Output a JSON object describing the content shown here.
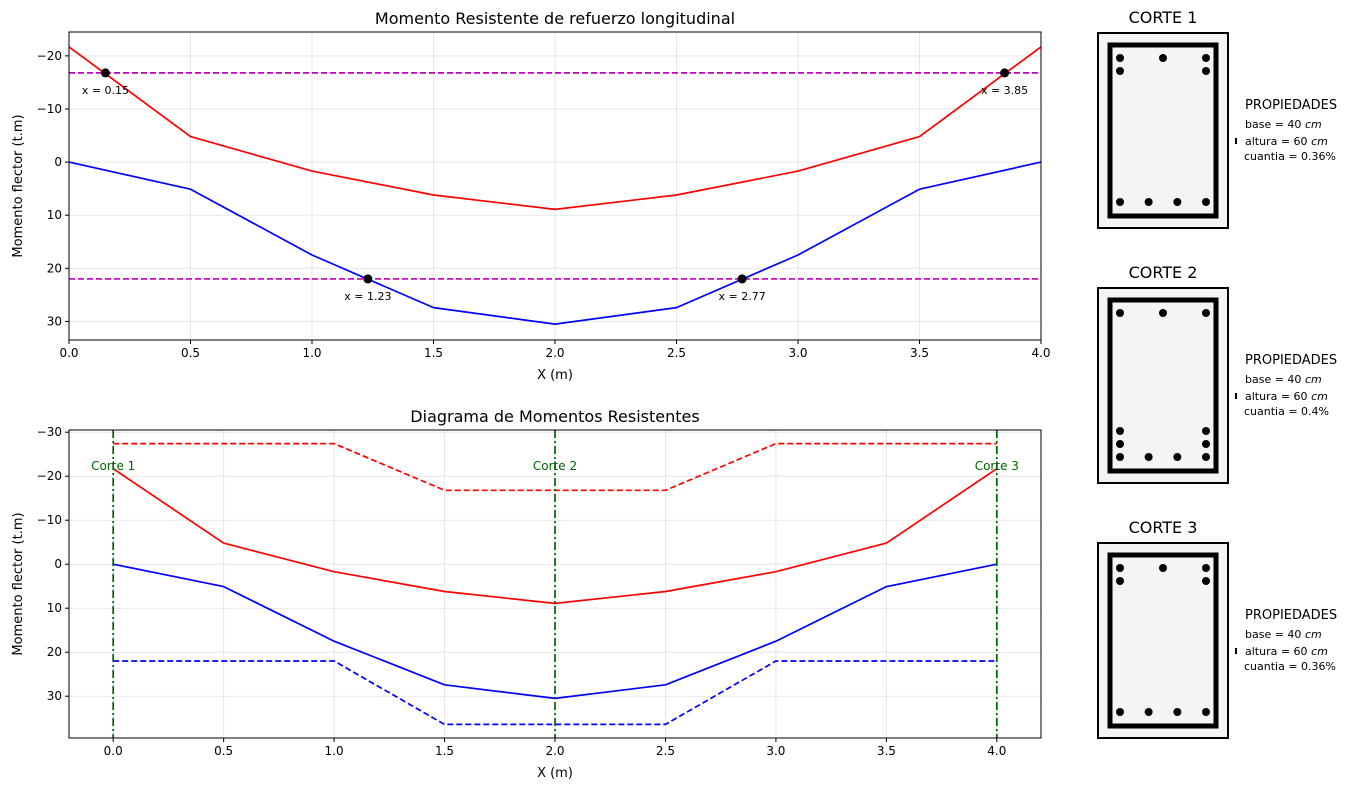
{
  "colors": {
    "negative": "#ff0000",
    "positive": "#0000ff",
    "threshold": "#bf00bf",
    "corte": "#006400",
    "grid": "#b0b0b0",
    "point": "#000000",
    "section_fill": "#f4f4f4"
  },
  "chart_data": [
    {
      "type": "line",
      "title": "Momento Resistente de refuerzo longitudinal",
      "xlabel": "X (m)",
      "ylabel": "Momento flector (t.m)",
      "xlim": [
        0,
        4
      ],
      "ylim": [
        -24.5,
        33.5
      ],
      "y_inverted": true,
      "grid": true,
      "x": [
        0,
        0.5,
        1.0,
        1.5,
        2.0,
        2.5,
        3.0,
        3.5,
        4.0
      ],
      "x_ticks": [
        0,
        0.5,
        1.0,
        1.5,
        2.0,
        2.5,
        3.0,
        3.5,
        4.0
      ],
      "x_tick_labels": [
        "0.0",
        "0.5",
        "1.0",
        "1.5",
        "2.0",
        "2.5",
        "3.0",
        "3.5",
        "4.0"
      ],
      "y_ticks": [
        -20,
        -10,
        0,
        10,
        20,
        30
      ],
      "y_tick_labels": [
        "−20",
        "−10",
        "0",
        "10",
        "20",
        "30"
      ],
      "series": [
        {
          "values": [
            -21.7,
            -4.8,
            1.7,
            6.2,
            8.9,
            6.2,
            1.7,
            -4.8,
            -21.7
          ],
          "color": "#ff0000",
          "style": "solid"
        },
        {
          "values": [
            0,
            5.1,
            17.5,
            27.4,
            30.5,
            27.4,
            17.5,
            5.1,
            0
          ],
          "color": "#0000ff",
          "style": "solid"
        }
      ],
      "hlines": [
        {
          "y": -16.8,
          "color": "#bf00bf",
          "style": "dashed"
        },
        {
          "y": 22.0,
          "color": "#bf00bf",
          "style": "dashed"
        }
      ],
      "points": [
        {
          "x": 0.15,
          "y": -16.8,
          "label": "x = 0.15",
          "label_dx": 0.0,
          "label_dy": 3.2,
          "anchor": "middle"
        },
        {
          "x": 3.85,
          "y": -16.8,
          "label": "x = 3.85",
          "label_dx": 0.0,
          "label_dy": 3.2,
          "anchor": "middle"
        },
        {
          "x": 1.23,
          "y": 22.0,
          "label": "x = 1.23",
          "label_dx": 0.0,
          "label_dy": 3.2,
          "anchor": "middle"
        },
        {
          "x": 2.77,
          "y": 22.0,
          "label": "x = 2.77",
          "label_dx": 0.0,
          "label_dy": 3.2,
          "anchor": "middle"
        }
      ]
    },
    {
      "type": "line",
      "title": "Diagrama de Momentos Resistentes",
      "xlabel": "X (m)",
      "ylabel": "Momento flector (t.m)",
      "xlim": [
        -0.2,
        4.2
      ],
      "ylim": [
        -30.5,
        39.5
      ],
      "y_inverted": true,
      "grid": true,
      "x": [
        0,
        0.5,
        1.0,
        1.5,
        2.0,
        2.5,
        3.0,
        3.5,
        4.0
      ],
      "x_ticks": [
        0,
        0.5,
        1.0,
        1.5,
        2.0,
        2.5,
        3.0,
        3.5,
        4.0
      ],
      "x_tick_labels": [
        "0.0",
        "0.5",
        "1.0",
        "1.5",
        "2.0",
        "2.5",
        "3.0",
        "3.5",
        "4.0"
      ],
      "y_ticks": [
        -30,
        -20,
        -10,
        0,
        10,
        20,
        30
      ],
      "y_tick_labels": [
        "−30",
        "−20",
        "−10",
        "0",
        "10",
        "20",
        "30"
      ],
      "series": [
        {
          "values": [
            -21.7,
            -4.8,
            1.7,
            6.2,
            8.9,
            6.2,
            1.7,
            -4.8,
            -21.7
          ],
          "color": "#ff0000",
          "style": "solid"
        },
        {
          "values": [
            0,
            5.1,
            17.5,
            27.4,
            30.5,
            27.4,
            17.5,
            5.1,
            0
          ],
          "color": "#0000ff",
          "style": "solid"
        },
        {
          "x": [
            0,
            1.0,
            1.5,
            2.5,
            3.0,
            4.0
          ],
          "values": [
            -27.4,
            -27.4,
            -16.8,
            -16.8,
            -27.4,
            -27.4
          ],
          "color": "#ff0000",
          "style": "dashed"
        },
        {
          "x": [
            0,
            1.0,
            1.5,
            2.5,
            3.0,
            4.0
          ],
          "values": [
            22.0,
            22.0,
            36.4,
            36.4,
            22.0,
            22.0
          ],
          "color": "#0000ff",
          "style": "dashed"
        }
      ],
      "vlines": [
        {
          "x": 0.0,
          "label": "Corte 1",
          "color": "#006400"
        },
        {
          "x": 2.0,
          "label": "Corte 2",
          "color": "#006400"
        },
        {
          "x": 4.0,
          "label": "Corte 3",
          "color": "#006400"
        }
      ],
      "vline_label_y": -22.5
    }
  ],
  "sections": [
    {
      "title": "CORTE 1",
      "properties_title": "PROPIEDADES",
      "base": "base = 40 ",
      "altura": "altura = 60 ",
      "unit": "cm",
      "cuantia": "cuantia = 0.36%",
      "top_bars": [
        [
          0,
          0
        ],
        [
          0.5,
          0
        ],
        [
          1,
          0
        ],
        [
          0,
          1
        ],
        [
          1,
          1
        ]
      ],
      "bottom_bars": [
        [
          0,
          0
        ],
        [
          0.333,
          0
        ],
        [
          0.667,
          0
        ],
        [
          1,
          0
        ]
      ]
    },
    {
      "title": "CORTE 2",
      "properties_title": "PROPIEDADES",
      "base": "base = 40 ",
      "altura": "altura = 60 ",
      "unit": "cm",
      "cuantia": "cuantia = 0.4%",
      "top_bars": [
        [
          0,
          0
        ],
        [
          0.5,
          0
        ],
        [
          1,
          0
        ]
      ],
      "bottom_bars": [
        [
          0,
          0
        ],
        [
          0.333,
          0
        ],
        [
          0.667,
          0
        ],
        [
          1,
          0
        ],
        [
          0,
          1
        ],
        [
          1,
          1
        ],
        [
          0,
          2
        ],
        [
          1,
          2
        ]
      ]
    },
    {
      "title": "CORTE 3",
      "properties_title": "PROPIEDADES",
      "base": "base = 40 ",
      "altura": "altura = 60 ",
      "unit": "cm",
      "cuantia": "cuantia = 0.36%",
      "top_bars": [
        [
          0,
          0
        ],
        [
          0.5,
          0
        ],
        [
          1,
          0
        ],
        [
          0,
          1
        ],
        [
          1,
          1
        ]
      ],
      "bottom_bars": [
        [
          0,
          0
        ],
        [
          0.333,
          0
        ],
        [
          0.667,
          0
        ],
        [
          1,
          0
        ]
      ]
    }
  ]
}
